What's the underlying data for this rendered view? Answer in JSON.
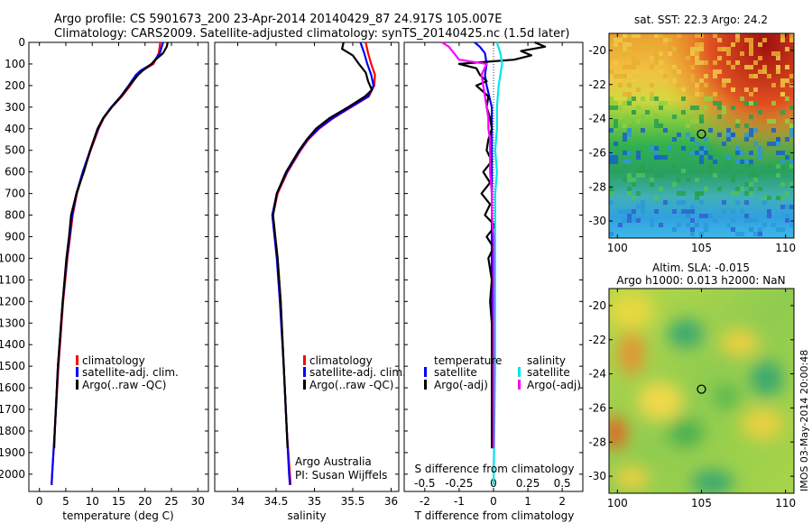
{
  "header": {
    "line1": "Argo profile: CS 5901673_200 23-Apr-2014 20140429_87 24.917S 105.007E",
    "line2": "Climatology: CARS2009. Satellite-adjusted climatology: synTS_20140425.nc (1.5d later)"
  },
  "colors": {
    "climatology": "#ff0000",
    "satellite": "#0000ff",
    "argo": "#000000",
    "sat_salinity": "#00e5ee",
    "argo_salinity": "#ff00ff"
  },
  "depth_axis": {
    "ticks": [
      0,
      100,
      200,
      300,
      400,
      500,
      600,
      700,
      800,
      900,
      1000,
      1100,
      1200,
      1300,
      1400,
      1500,
      1600,
      1700,
      1800,
      1900,
      2000
    ],
    "ylim": [
      0,
      2080
    ]
  },
  "chart_data": [
    {
      "id": "temp",
      "type": "line",
      "xlabel": "temperature (deg C)",
      "xlim": [
        -2,
        32
      ],
      "xticks": [
        0,
        5,
        10,
        15,
        20,
        25,
        30
      ],
      "ylim": [
        0,
        2080
      ],
      "legend": [
        "climatology",
        "satellite-adj. clim.",
        "Argo(..raw -QC)"
      ],
      "series": [
        {
          "name": "climatology",
          "color": "#ff0000",
          "depth": [
            0,
            50,
            100,
            130,
            150,
            200,
            250,
            300,
            350,
            400,
            500,
            600,
            700,
            800,
            900,
            1000,
            1200,
            1500,
            1800,
            2000,
            2050
          ],
          "x": [
            22.9,
            22.6,
            21.6,
            19.5,
            18.6,
            17.2,
            15.6,
            13.7,
            12.2,
            11.2,
            9.7,
            8.3,
            7.1,
            6.3,
            5.8,
            5.3,
            4.5,
            3.6,
            2.9,
            2.4,
            2.3
          ]
        },
        {
          "name": "satellite-adj. clim.",
          "color": "#0000ff",
          "depth": [
            0,
            50,
            100,
            130,
            150,
            200,
            250,
            300,
            350,
            400,
            500,
            600,
            700,
            800,
            900,
            1000,
            1200,
            1500,
            1800,
            2000,
            2050
          ],
          "x": [
            23.4,
            22.8,
            21.3,
            19.2,
            18.3,
            16.9,
            15.4,
            13.6,
            12.1,
            11.1,
            9.6,
            8.2,
            7.0,
            6.2,
            5.7,
            5.2,
            4.4,
            3.5,
            2.9,
            2.4,
            2.3
          ]
        },
        {
          "name": "Argo(..raw -QC)",
          "color": "#000000",
          "depth": [
            0,
            20,
            50,
            80,
            100,
            130,
            150,
            200,
            250,
            300,
            350,
            400,
            500,
            600,
            700,
            800,
            900,
            1000,
            1200,
            1500,
            1800,
            1880
          ],
          "x": [
            24.3,
            24.1,
            23.4,
            22.0,
            21.2,
            19.6,
            18.7,
            17.0,
            15.5,
            13.7,
            12.1,
            11.0,
            9.6,
            8.4,
            7.0,
            6.0,
            5.6,
            5.1,
            4.4,
            3.5,
            2.9,
            2.8
          ]
        }
      ]
    },
    {
      "id": "sal",
      "type": "line",
      "xlabel": "salinity",
      "xlim": [
        33.7,
        36.1
      ],
      "xticks": [
        34,
        34.5,
        35,
        35.5,
        36
      ],
      "ylim": [
        0,
        2080
      ],
      "legend": [
        "climatology",
        "satellite-adj. clim.",
        "Argo(..raw -QC)"
      ],
      "series": [
        {
          "name": "climatology",
          "color": "#ff0000",
          "depth": [
            0,
            50,
            100,
            150,
            200,
            250,
            300,
            350,
            400,
            450,
            500,
            600,
            700,
            800,
            900,
            1000,
            1200,
            1500,
            1800,
            2000,
            2050
          ],
          "x": [
            35.67,
            35.7,
            35.74,
            35.79,
            35.78,
            35.71,
            35.48,
            35.25,
            35.06,
            34.92,
            34.82,
            34.65,
            34.52,
            34.46,
            34.49,
            34.52,
            34.56,
            34.6,
            34.64,
            34.68,
            34.69
          ]
        },
        {
          "name": "satellite-adj. clim.",
          "color": "#0000ff",
          "depth": [
            0,
            50,
            100,
            150,
            200,
            250,
            300,
            350,
            400,
            450,
            500,
            600,
            700,
            800,
            900,
            1000,
            1200,
            1500,
            1800,
            2000,
            2050
          ],
          "x": [
            35.6,
            35.65,
            35.69,
            35.74,
            35.77,
            35.7,
            35.47,
            35.24,
            35.05,
            34.91,
            34.81,
            34.64,
            34.51,
            34.45,
            34.48,
            34.51,
            34.55,
            34.6,
            34.64,
            34.67,
            34.68
          ]
        },
        {
          "name": "Argo(..raw -QC)",
          "color": "#000000",
          "depth": [
            0,
            30,
            60,
            100,
            140,
            180,
            220,
            250,
            300,
            350,
            400,
            450,
            500,
            600,
            700,
            800,
            900,
            1000,
            1200,
            1500,
            1800,
            1880
          ],
          "x": [
            35.38,
            35.36,
            35.5,
            35.58,
            35.67,
            35.7,
            35.75,
            35.66,
            35.44,
            35.2,
            35.02,
            34.9,
            34.8,
            34.63,
            34.51,
            34.46,
            34.49,
            34.52,
            34.56,
            34.6,
            34.64,
            34.65
          ]
        }
      ]
    },
    {
      "id": "diff",
      "type": "line",
      "xlabel": "T difference from climatology",
      "top_xlabel": "S difference from climatology",
      "xlim": [
        -2.6,
        2.6
      ],
      "xticks": [
        -2,
        -1,
        0,
        1,
        2
      ],
      "top_ticks": [
        {
          "label": "-0.5",
          "x": -2
        },
        {
          "label": "-0.25",
          "x": -1
        },
        {
          "label": "0",
          "x": 0
        },
        {
          "label": "0.25",
          "x": 1
        },
        {
          "label": "0.5",
          "x": 2
        }
      ],
      "ylim": [
        0,
        2080
      ],
      "legend_temperature_title": "temperature",
      "legend_salinity_title": "salinity",
      "legend": [
        "satellite",
        "Argo(-adj)",
        "satellite",
        "Argo(-adj)"
      ],
      "series": [
        {
          "name": "satellite",
          "group": "temperature",
          "color": "#0000ff",
          "depth": [
            0,
            20,
            50,
            100,
            150,
            200,
            300,
            400,
            500,
            600,
            800,
            1000,
            1500,
            1880
          ],
          "x": [
            -0.55,
            -0.4,
            -0.25,
            -0.2,
            -0.25,
            -0.2,
            -0.05,
            -0.05,
            -0.05,
            -0.05,
            -0.05,
            -0.05,
            -0.05,
            -0.05
          ]
        },
        {
          "name": "Argo(-adj)",
          "group": "temperature",
          "color": "#000000",
          "depth": [
            0,
            20,
            40,
            60,
            80,
            100,
            120,
            150,
            180,
            200,
            250,
            300,
            350,
            400,
            450,
            500,
            550,
            600,
            650,
            700,
            750,
            800,
            850,
            900,
            950,
            1000,
            1100,
            1200,
            1300,
            1500,
            1700,
            1880
          ],
          "x": [
            1.2,
            1.5,
            0.8,
            1.1,
            0.6,
            -1.0,
            -0.5,
            -0.4,
            -0.2,
            -0.5,
            -0.15,
            -0.2,
            -0.1,
            -0.05,
            -0.15,
            -0.2,
            -0.05,
            -0.3,
            -0.1,
            -0.35,
            -0.1,
            -0.25,
            0.05,
            -0.2,
            0.0,
            -0.15,
            -0.05,
            -0.1,
            -0.05,
            -0.05,
            -0.05,
            -0.05
          ]
        },
        {
          "name": "satellite",
          "group": "salinity",
          "color": "#00e5ee",
          "depth": [
            0,
            50,
            100,
            150,
            200,
            300,
            400,
            500,
            600,
            700,
            800,
            900,
            1000,
            1500,
            2050
          ],
          "x": [
            0.1,
            0.2,
            0.25,
            0.2,
            0.15,
            0.1,
            0.1,
            0.05,
            0.1,
            0.05,
            0.05,
            0.05,
            0.05,
            0.05,
            0.0
          ]
        },
        {
          "name": "Argo(-adj)",
          "group": "salinity",
          "color": "#ff00ff",
          "depth": [
            0,
            20,
            40,
            80,
            100,
            150,
            200,
            250,
            300,
            350,
            400,
            450,
            500,
            600,
            700,
            800,
            900,
            1000,
            1200,
            1500,
            1880
          ],
          "x": [
            -1.5,
            -1.3,
            -1.2,
            -1.0,
            -0.2,
            -0.35,
            -0.3,
            -0.25,
            -0.2,
            -0.15,
            -0.15,
            -0.1,
            -0.1,
            -0.1,
            -0.05,
            -0.05,
            0.0,
            0.0,
            0.0,
            0.0,
            0.0
          ]
        }
      ]
    }
  ],
  "maps": {
    "sst": {
      "title": "sat. SST: 22.3 Argo: 24.2",
      "xlim": [
        99.5,
        110.5
      ],
      "ylim": [
        -31,
        -19
      ],
      "xticks": [
        100,
        105,
        110
      ],
      "yticks": [
        -20,
        -22,
        -24,
        -26,
        -28,
        -30
      ],
      "argo_lon": 105.0,
      "argo_lat": -24.9
    },
    "sla": {
      "title_line1": "Altim. SLA: -0.015",
      "title_line2": "Argo h1000: 0.013 h2000: NaN",
      "xlim": [
        99.5,
        110.5
      ],
      "ylim": [
        -31,
        -19
      ],
      "xticks": [
        100,
        105,
        110
      ],
      "yticks": [
        -20,
        -22,
        -24,
        -26,
        -28,
        -30
      ],
      "argo_lon": 105.0,
      "argo_lat": -24.9
    }
  },
  "credits": {
    "line1": "Argo Australia",
    "line2": "PI: Susan Wijffels",
    "imos": "IMOS 03-May-2014 20:00:48"
  }
}
